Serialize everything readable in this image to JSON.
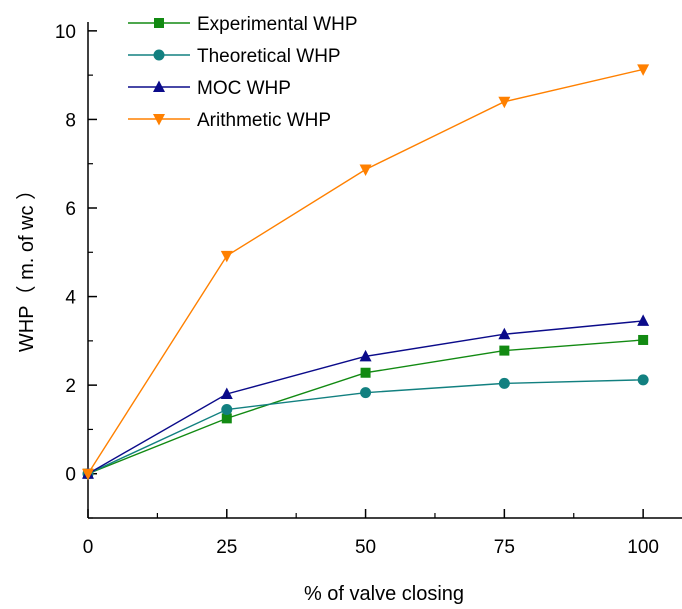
{
  "chart_data": {
    "type": "line",
    "x": [
      0,
      25,
      50,
      75,
      100
    ],
    "xlabel": "% of valve closing",
    "ylabel": "WHP（ m. of wc ）",
    "xlim": [
      0,
      107
    ],
    "ylim": [
      -1,
      10.2
    ],
    "x_ticks": [
      "0",
      "25",
      "50",
      "75",
      "100"
    ],
    "y_ticks": [
      "0",
      "2",
      "4",
      "6",
      "8",
      "10"
    ],
    "grid": false,
    "legend_position": "top-left",
    "series": [
      {
        "name": "Experimental WHP",
        "marker": "square",
        "color": "#128a12",
        "values": [
          0,
          1.25,
          2.28,
          2.78,
          3.02
        ]
      },
      {
        "name": "Theoretical WHP",
        "marker": "circle",
        "color": "#128080",
        "values": [
          0,
          1.45,
          1.83,
          2.04,
          2.12
        ]
      },
      {
        "name": "MOC WHP",
        "marker": "triangle-up",
        "color": "#0b0b8a",
        "values": [
          0,
          1.8,
          2.65,
          3.15,
          3.45
        ]
      },
      {
        "name": "Arithmetic WHP",
        "marker": "triangle-down",
        "color": "#ff8000",
        "values": [
          0,
          4.92,
          6.87,
          8.4,
          9.13
        ]
      }
    ]
  }
}
